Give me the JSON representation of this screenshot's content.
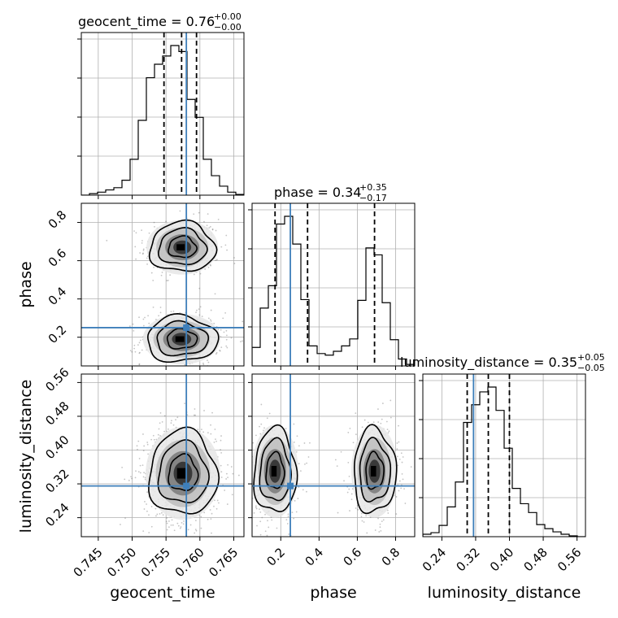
{
  "colors": {
    "truth": "#3e7fba",
    "hist": "#000000",
    "grid": "#b0b0b0",
    "scatter": "#555555"
  },
  "chart_data": {
    "type": "corner",
    "parameters": [
      "geocent_time",
      "phase",
      "luminosity_distance"
    ],
    "truths": {
      "geocent_time": 0.758,
      "phase": 0.25,
      "luminosity_distance": 0.315
    },
    "axes": {
      "geocent_time": {
        "range": [
          0.7425,
          0.7665
        ],
        "ticks": [
          0.745,
          0.75,
          0.755,
          0.76,
          0.765
        ],
        "tick_labels": [
          "0.745",
          "0.750",
          "0.755",
          "0.760",
          "0.765"
        ]
      },
      "phase": {
        "range": [
          0.05,
          0.9
        ],
        "ticks": [
          0.2,
          0.4,
          0.6,
          0.8
        ],
        "tick_labels": [
          "0.2",
          "0.4",
          "0.6",
          "0.8"
        ]
      },
      "luminosity_distance": {
        "range": [
          0.195,
          0.58
        ],
        "ticks": [
          0.24,
          0.32,
          0.4,
          0.48,
          0.56
        ],
        "tick_labels": [
          "0.24",
          "0.32",
          "0.40",
          "0.48",
          "0.56"
        ]
      }
    },
    "titles": [
      {
        "param": "geocent_time",
        "text": "geocent_time = 0.76",
        "sup": "+0.00",
        "sub": "−0.00"
      },
      {
        "param": "phase",
        "text": "phase = 0.34",
        "sup": "+0.35",
        "sub": "−0.17"
      },
      {
        "param": "luminosity_distance",
        "text": "luminosity_distance = 0.35",
        "sup": "+0.05",
        "sub": "−0.05"
      }
    ],
    "xlabels": [
      "geocent_time",
      "phase",
      "luminosity_distance"
    ],
    "ylabels": [
      "",
      "phase",
      "luminosity_distance"
    ],
    "histograms": {
      "geocent_time": {
        "bin_edges": [
          0.7425,
          0.7437,
          0.7449,
          0.7461,
          0.7473,
          0.7485,
          0.7497,
          0.7509,
          0.7521,
          0.7533,
          0.7545,
          0.7557,
          0.7569,
          0.7581,
          0.7593,
          0.7605,
          0.7617,
          0.7629,
          0.7641,
          0.7653,
          0.7665
        ],
        "counts": [
          0,
          2,
          4,
          7,
          10,
          20,
          48,
          100,
          157,
          175,
          186,
          200,
          192,
          128,
          104,
          48,
          26,
          12,
          4,
          1
        ],
        "quantiles": [
          0.7547,
          0.7573,
          0.7595
        ]
      },
      "phase": {
        "bin_edges": [
          0.05,
          0.0925,
          0.135,
          0.1775,
          0.22,
          0.2625,
          0.305,
          0.3475,
          0.39,
          0.4325,
          0.475,
          0.5175,
          0.56,
          0.6025,
          0.645,
          0.6875,
          0.73,
          0.7725,
          0.815,
          0.8575,
          0.9
        ],
        "counts": [
          24,
          75,
          104,
          184,
          194,
          158,
          86,
          26,
          16,
          14,
          19,
          26,
          35,
          85,
          153,
          144,
          82,
          34,
          9,
          2
        ],
        "quantiles": [
          0.17,
          0.34,
          0.69
        ]
      },
      "luminosity_distance": {
        "bin_edges": [
          0.195,
          0.21425,
          0.2335,
          0.25275,
          0.272,
          0.29125,
          0.3105,
          0.32975,
          0.349,
          0.36825,
          0.3875,
          0.40675,
          0.426,
          0.44525,
          0.4645,
          0.48375,
          0.503,
          0.52225,
          0.5415,
          0.56075,
          0.58
        ],
        "counts": [
          3,
          5,
          14,
          37,
          68,
          142,
          164,
          180,
          186,
          157,
          110,
          60,
          41,
          30,
          15,
          10,
          6,
          3,
          1,
          0
        ],
        "quantiles": [
          0.3,
          0.35,
          0.4
        ]
      }
    },
    "contours_2d": {
      "phase_vs_geocent_time": {
        "modes": [
          {
            "center": [
              0.7574,
              0.67
            ],
            "sigma": [
              0.0024,
              0.065
            ],
            "weight": 0.48
          },
          {
            "center": [
              0.7573,
              0.19
            ],
            "sigma": [
              0.0026,
              0.06
            ],
            "weight": 0.52
          }
        ]
      },
      "luminosity_distance_vs_geocent_time": {
        "modes": [
          {
            "center": [
              0.7575,
              0.345
            ],
            "sigma": [
              0.0025,
              0.05
            ],
            "weight": 1.0
          }
        ]
      },
      "luminosity_distance_vs_phase": {
        "modes": [
          {
            "center": [
              0.17,
              0.35
            ],
            "sigma": [
              0.055,
              0.05
            ],
            "weight": 0.52
          },
          {
            "center": [
              0.69,
              0.35
            ],
            "sigma": [
              0.055,
              0.05
            ],
            "weight": 0.48
          }
        ]
      }
    },
    "grid": true
  }
}
